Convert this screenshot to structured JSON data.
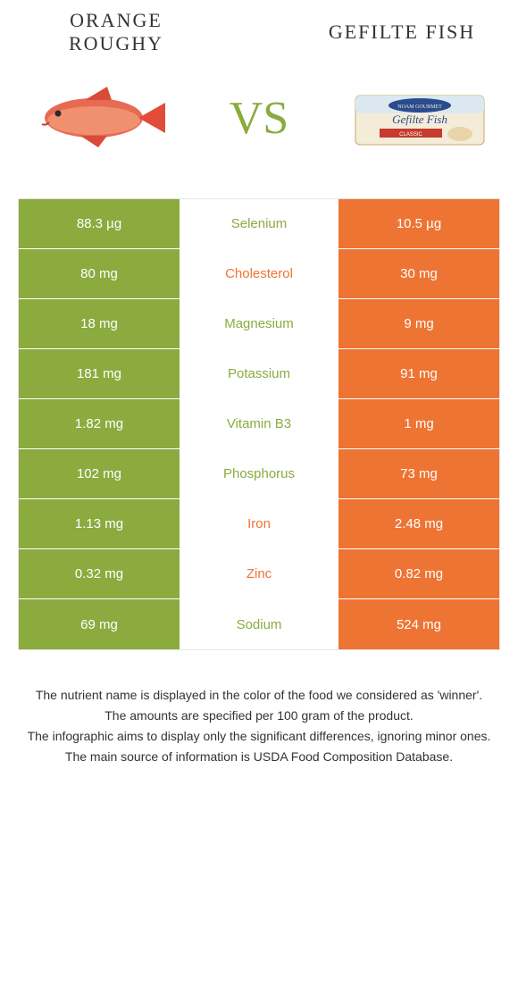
{
  "colors": {
    "green": "#8bab3f",
    "orange": "#ee7434",
    "gray_border": "#e6e6e6",
    "text": "#333333",
    "white": "#ffffff"
  },
  "header": {
    "left_title": "Orange roughy",
    "right_title": "Gefilte fish",
    "vs": "VS",
    "vs_color": "#8bab3f"
  },
  "rows": [
    {
      "left": "88.3 µg",
      "label": "Selenium",
      "right": "10.5 µg",
      "winner": "left"
    },
    {
      "left": "80 mg",
      "label": "Cholesterol",
      "right": "30 mg",
      "winner": "right"
    },
    {
      "left": "18 mg",
      "label": "Magnesium",
      "right": "9 mg",
      "winner": "left"
    },
    {
      "left": "181 mg",
      "label": "Potassium",
      "right": "91 mg",
      "winner": "left"
    },
    {
      "left": "1.82 mg",
      "label": "Vitamin B3",
      "right": "1 mg",
      "winner": "left"
    },
    {
      "left": "102 mg",
      "label": "Phosphorus",
      "right": "73 mg",
      "winner": "left"
    },
    {
      "left": "1.13 mg",
      "label": "Iron",
      "right": "2.48 mg",
      "winner": "right"
    },
    {
      "left": "0.32 mg",
      "label": "Zinc",
      "right": "0.82 mg",
      "winner": "right"
    },
    {
      "left": "69 mg",
      "label": "Sodium",
      "right": "524 mg",
      "winner": "left"
    }
  ],
  "footnotes": [
    "The nutrient name is displayed in the color of the food we considered as 'winner'.",
    "The amounts are specified per 100 gram of the product.",
    "The infographic aims to display only the significant differences, ignoring minor ones.",
    "The main source of information is USDA Food Composition Database."
  ]
}
